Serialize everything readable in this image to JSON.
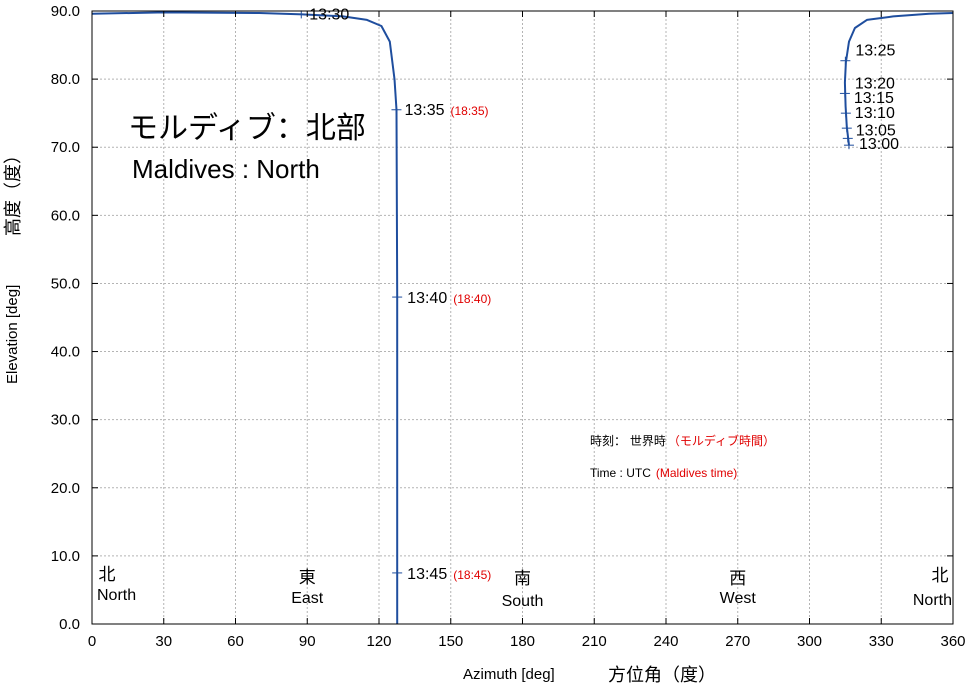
{
  "chart_data": {
    "type": "line",
    "title_ja": "モルディブ：北部",
    "title_en": "Maldives : North",
    "xlabel_en": "Azimuth [deg]",
    "xlabel_ja": "方位角（度）",
    "ylabel_en": "Elevation [deg]",
    "ylabel_ja": "高度（度）",
    "xlim": [
      0,
      360
    ],
    "ylim": [
      0,
      90
    ],
    "xticks": [
      "0",
      "30",
      "60",
      "90",
      "120",
      "150",
      "180",
      "210",
      "240",
      "270",
      "300",
      "330",
      "360"
    ],
    "yticks": [
      "0.0",
      "10.0",
      "20.0",
      "30.0",
      "40.0",
      "50.0",
      "60.0",
      "70.0",
      "80.0",
      "90.0"
    ],
    "grid": true,
    "series_color": "#1f4e9e",
    "local_time_color": "#e00000",
    "segments": [
      {
        "points": [
          [
            316.5,
            70.3
          ],
          [
            315.6,
            73.0
          ],
          [
            315.1,
            76.0
          ],
          [
            314.8,
            79.5
          ],
          [
            315.2,
            82.5
          ],
          [
            316.5,
            85.5
          ],
          [
            319.0,
            87.5
          ],
          [
            324.0,
            88.7
          ],
          [
            335.0,
            89.2
          ],
          [
            350.0,
            89.6
          ],
          [
            360.0,
            89.7
          ]
        ]
      },
      {
        "points": [
          [
            0.0,
            89.6
          ],
          [
            30.0,
            89.8
          ],
          [
            70.0,
            89.7
          ],
          [
            88.0,
            89.5
          ],
          [
            105.0,
            89.2
          ],
          [
            115.0,
            88.7
          ],
          [
            121.0,
            87.8
          ],
          [
            124.5,
            85.5
          ],
          [
            126.5,
            80.0
          ],
          [
            127.3,
            75.5
          ],
          [
            127.5,
            60.0
          ],
          [
            127.6,
            48.0
          ],
          [
            127.6,
            30.0
          ],
          [
            127.6,
            7.5
          ],
          [
            127.6,
            0.0
          ]
        ]
      }
    ],
    "time_markers": [
      {
        "az": 316.5,
        "el": 70.3,
        "label": "13:00",
        "local": ""
      },
      {
        "az": 316.0,
        "el": 71.3,
        "label": "13:05",
        "local": ""
      },
      {
        "az": 315.6,
        "el": 72.8,
        "label": "13:10",
        "local": ""
      },
      {
        "az": 315.2,
        "el": 75.0,
        "label": "13:15",
        "local": ""
      },
      {
        "az": 314.8,
        "el": 77.9,
        "label": "13:20",
        "local": ""
      },
      {
        "az": 315.0,
        "el": 82.7,
        "label": "13:25",
        "local": ""
      },
      {
        "az": 87.5,
        "el": 89.5,
        "label": "13:30",
        "local": ""
      },
      {
        "az": 127.3,
        "el": 75.5,
        "label": "13:35",
        "local": "(18:35)"
      },
      {
        "az": 127.6,
        "el": 48.0,
        "label": "13:40",
        "local": "(18:40)"
      },
      {
        "az": 127.6,
        "el": 7.5,
        "label": "13:45",
        "local": "(18:45)"
      }
    ],
    "directions": [
      {
        "az": 0,
        "ja": "北",
        "en": "North"
      },
      {
        "az": 90,
        "ja": "東",
        "en": "East"
      },
      {
        "az": 180,
        "ja": "南",
        "en": "South"
      },
      {
        "az": 270,
        "ja": "西",
        "en": "West"
      },
      {
        "az": 360,
        "ja": "北",
        "en": "North"
      }
    ],
    "legend": {
      "ja_prefix": "時刻：  世界時",
      "ja_local": "（モルディブ時間）",
      "en_prefix": "Time : UTC",
      "en_local": "(Maldives time)"
    }
  }
}
